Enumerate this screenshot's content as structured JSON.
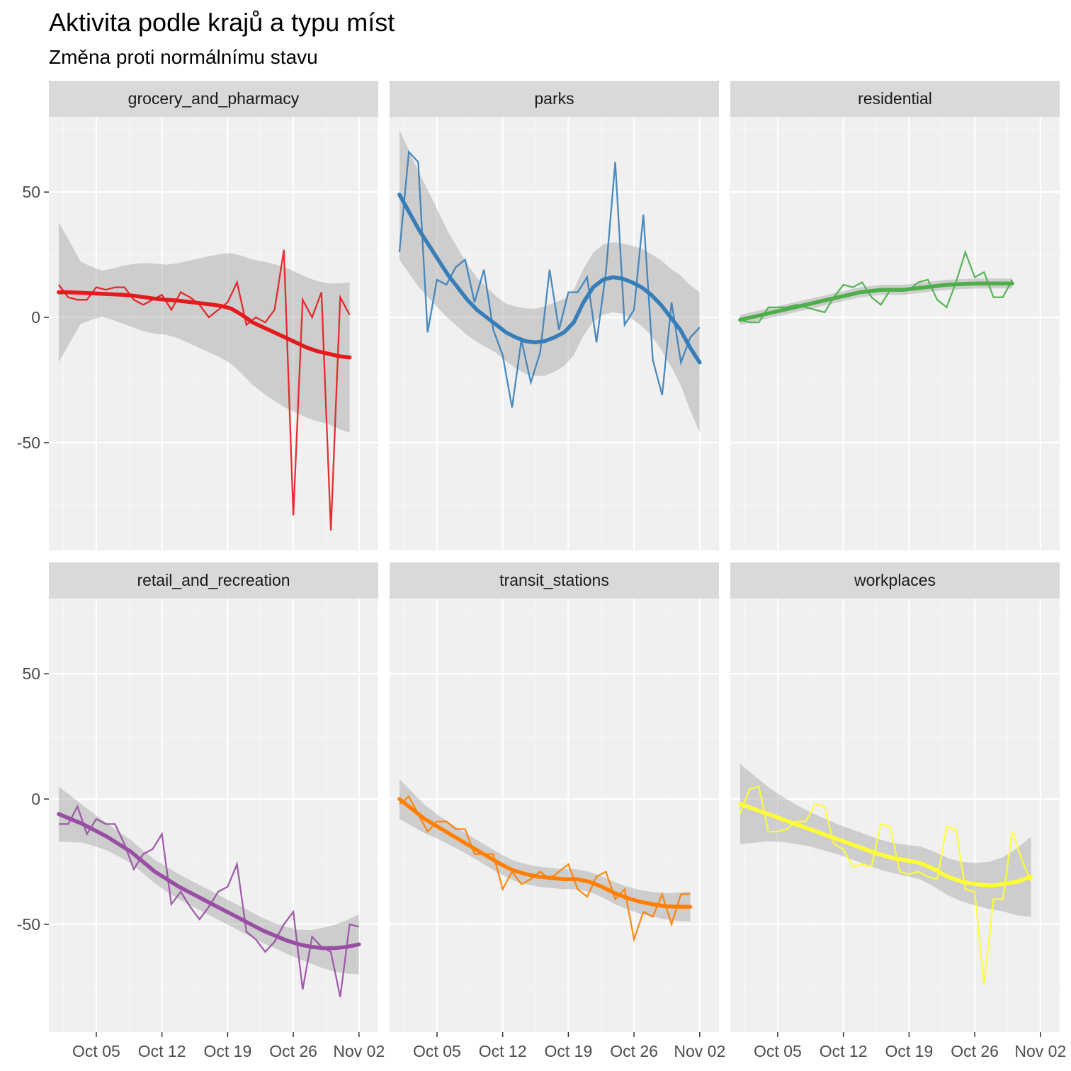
{
  "chart_data": {
    "type": "line",
    "title": "Aktivita podle krajů a typu míst",
    "subtitle": "Změna proti normálnímu stavu",
    "xlabel": "",
    "ylabel": "",
    "x_ticks": [
      "Oct 05",
      "Oct 12",
      "Oct 19",
      "Oct 26",
      "Nov 02"
    ],
    "y_ticks": [
      50,
      0,
      -50
    ],
    "ylim": [
      -93,
      80
    ],
    "x": [
      1,
      2,
      3,
      4,
      5,
      6,
      7,
      8,
      9,
      10,
      11,
      12,
      13,
      14,
      15,
      16,
      17,
      18,
      19,
      20,
      21,
      22,
      23,
      24,
      25,
      26,
      27,
      28,
      29,
      30,
      31,
      32,
      33,
      34
    ],
    "x_dates": [
      "2020-10-01",
      "2020-10-02",
      "2020-10-03",
      "2020-10-04",
      "2020-10-05",
      "2020-10-06",
      "2020-10-07",
      "2020-10-08",
      "2020-10-09",
      "2020-10-10",
      "2020-10-11",
      "2020-10-12",
      "2020-10-13",
      "2020-10-14",
      "2020-10-15",
      "2020-10-16",
      "2020-10-17",
      "2020-10-18",
      "2020-10-19",
      "2020-10-20",
      "2020-10-21",
      "2020-10-22",
      "2020-10-23",
      "2020-10-24",
      "2020-10-25",
      "2020-10-26",
      "2020-10-27",
      "2020-10-28",
      "2020-10-29",
      "2020-10-30",
      "2020-10-31",
      "2020-11-01",
      "2020-11-02",
      "2020-11-03"
    ],
    "grid": true,
    "legend": "none",
    "facets": [
      {
        "label": "grocery_and_pharmacy",
        "color": "#e41a1c",
        "values": [
          13,
          8,
          7,
          7,
          12,
          11,
          12,
          12,
          7,
          5,
          7,
          9,
          3,
          10,
          8,
          5,
          0,
          3,
          6,
          14,
          -3,
          0,
          -2,
          3,
          27,
          -79,
          7,
          0,
          10,
          -85,
          8,
          1
        ],
        "smooth": [
          10,
          10,
          9.8,
          9.6,
          9.4,
          9.2,
          9,
          8.6,
          8,
          7.4,
          7,
          6.7,
          6.2,
          5.7,
          5.2,
          4.6,
          3.5,
          1,
          -2,
          -4,
          -6,
          -8,
          -10,
          -12,
          -13.5,
          -14.5,
          -15.5,
          -16
        ],
        "ci": [
          28,
          12,
          9,
          12,
          14,
          14,
          17,
          20,
          23,
          26,
          28,
          28,
          28,
          30
        ]
      },
      {
        "label": "parks",
        "color": "#377eb8",
        "values": [
          26,
          66,
          62,
          -6,
          15,
          13,
          20,
          23,
          6,
          19,
          -5,
          -15,
          -36,
          -9,
          -26,
          -14,
          19,
          -5,
          10,
          10,
          16,
          -10,
          18,
          62,
          -3,
          3,
          41,
          -17,
          -31,
          6,
          -18,
          -8,
          -4
        ],
        "smooth": [
          49,
          42,
          35,
          29,
          23,
          17,
          12,
          7,
          3,
          0,
          -3,
          -6,
          -8,
          -9.5,
          -10,
          -9.5,
          -8,
          -6,
          -2,
          6,
          12,
          15,
          16,
          15.5,
          14,
          12,
          9,
          5,
          0,
          -5,
          -12,
          -18
        ],
        "ci": [
          26,
          22,
          17,
          13,
          11,
          13,
          14,
          13,
          14,
          14,
          16,
          20,
          28
        ]
      },
      {
        "label": "residential",
        "color": "#4daf4a",
        "values": [
          -1,
          -2,
          -2,
          4,
          4,
          4,
          5,
          4,
          3,
          2,
          8,
          13,
          12,
          14,
          8,
          5,
          11,
          11,
          11,
          14,
          15,
          7,
          4,
          14,
          26,
          16,
          18,
          8,
          8,
          15
        ],
        "smooth": [
          -1,
          0,
          1,
          2,
          3,
          4,
          5,
          6,
          7,
          8,
          9,
          10,
          10.5,
          11,
          11,
          11,
          11.5,
          12,
          12.5,
          13,
          13.2,
          13.4,
          13.5,
          13.5,
          13.5,
          13.5
        ],
        "ci": [
          2,
          2,
          2,
          2,
          2,
          2,
          2,
          2
        ]
      },
      {
        "label": "retail_and_recreation",
        "color": "#984ea3",
        "values": [
          -10,
          -10,
          -3,
          -14,
          -8,
          -10,
          -10,
          -18,
          -28,
          -22,
          -20,
          -14,
          -42,
          -37,
          -43,
          -48,
          -43,
          -37,
          -35,
          -26,
          -53,
          -56,
          -61,
          -57,
          -50,
          -45,
          -76,
          -55,
          -59,
          -61,
          -79,
          -50,
          -51
        ],
        "smooth": [
          -6,
          -8,
          -10,
          -12.5,
          -15,
          -18,
          -21,
          -25,
          -29,
          -32,
          -35,
          -37.5,
          -40,
          -42.5,
          -45,
          -47.5,
          -50,
          -52.5,
          -54.5,
          -56.5,
          -58,
          -59,
          -59.5,
          -59.5,
          -59,
          -58
        ],
        "ci": [
          11,
          7,
          5,
          4.5,
          5,
          5,
          5,
          5,
          5,
          6,
          9,
          12
        ]
      },
      {
        "label": "transit_stations",
        "color": "#ff7f00",
        "values": [
          -2,
          1,
          -6,
          -13,
          -9,
          -9,
          -12,
          -12,
          -22,
          -22,
          -22,
          -36,
          -29,
          -34,
          -32,
          -29,
          -32,
          -29,
          -26,
          -36,
          -39,
          -31,
          -29,
          -40,
          -36,
          -56,
          -45,
          -47,
          -38,
          -50,
          -38,
          -38
        ],
        "smooth": [
          0,
          -4,
          -8,
          -11,
          -14,
          -17,
          -20,
          -23,
          -26,
          -28.5,
          -30,
          -31,
          -31.5,
          -32,
          -32,
          -33,
          -35,
          -37.5,
          -39.5,
          -41,
          -42,
          -42.8,
          -43,
          -43
        ],
        "ci": [
          8,
          5,
          4,
          4,
          4,
          4,
          4,
          4.5,
          5,
          6
        ]
      },
      {
        "label": "workplaces",
        "color": "#ffff33",
        "values": [
          -6,
          4,
          5,
          -13,
          -13,
          -12,
          -9,
          -9,
          -2,
          -3,
          -18,
          -20,
          -27,
          -26,
          -27,
          -10,
          -11,
          -29,
          -30,
          -29,
          -31,
          -32,
          -11,
          -12,
          -36,
          -37,
          -74,
          -40,
          -40,
          -13,
          -24,
          -33
        ],
        "smooth": [
          -2,
          -4,
          -6,
          -8,
          -10,
          -12,
          -14,
          -16,
          -18,
          -20,
          -22,
          -23.5,
          -24.5,
          -25.5,
          -28,
          -31,
          -33,
          -34,
          -34.5,
          -34,
          -33,
          -31
        ],
        "ci": [
          16,
          10,
          7,
          6,
          6,
          6,
          7,
          8,
          10,
          16
        ]
      }
    ]
  }
}
